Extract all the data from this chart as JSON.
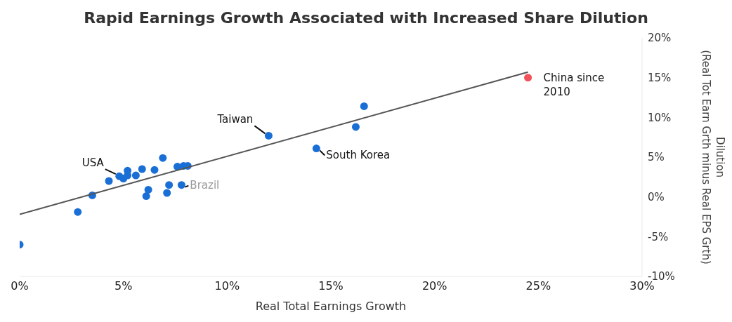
{
  "chart_data": {
    "type": "scatter",
    "title": "Rapid Earnings Growth Associated with Increased Share Dilution",
    "xlabel": "Real Total Earnings Growth",
    "ylabel": "Dilution\n(Real Tot Earn Grth minus Real EPS Grth)",
    "xlim": [
      0,
      30
    ],
    "xticks": [
      {
        "value": 0,
        "label": "0%"
      },
      {
        "value": 5,
        "label": "5%"
      },
      {
        "value": 10,
        "label": "10%"
      },
      {
        "value": 15,
        "label": "15%"
      },
      {
        "value": 20,
        "label": "20%"
      },
      {
        "value": 25,
        "label": "25%"
      },
      {
        "value": 30,
        "label": "30%"
      }
    ],
    "ylim": [
      -10,
      20
    ],
    "yticks": [
      {
        "value": -10,
        "label": "-10%"
      },
      {
        "value": -5,
        "label": "-5%"
      },
      {
        "value": 0,
        "label": "0%"
      },
      {
        "value": 5,
        "label": "5%"
      },
      {
        "value": 10,
        "label": "10%"
      },
      {
        "value": 15,
        "label": "15%"
      },
      {
        "value": 20,
        "label": "20%"
      }
    ],
    "grid": false,
    "marker": "circle",
    "series": [
      {
        "color": "#1a6fd6",
        "x": [
          0,
          2.8,
          3.5,
          4.3,
          4.8,
          5.0,
          5.2,
          5.2,
          5.6,
          5.9,
          6.5,
          6.9,
          6.1,
          6.2,
          7.1,
          7.2,
          7.6,
          7.9,
          8.1,
          7.8,
          12.0,
          14.3,
          16.2,
          16.6
        ],
        "values": [
          -6.0,
          -1.9,
          0.2,
          2.0,
          2.6,
          2.3,
          2.7,
          3.3,
          2.7,
          3.5,
          3.4,
          4.9,
          0.1,
          0.9,
          0.5,
          1.5,
          3.8,
          3.9,
          3.9,
          1.5,
          7.7,
          6.1,
          8.8,
          11.4
        ]
      },
      {
        "color": "#f2505a",
        "x": [
          24.5
        ],
        "values": [
          15.0
        ]
      },
      {
        "type": "line",
        "color": "#555555",
        "x": [
          0,
          24.5
        ],
        "values": [
          -2.2,
          15.7
        ],
        "marker": "none"
      }
    ],
    "annotations": [
      {
        "text": "USA",
        "x": 4.8,
        "y": 2.6
      },
      {
        "text": "Taiwan",
        "x": 12.0,
        "y": 7.7
      },
      {
        "text": "South Korea",
        "x": 14.3,
        "y": 6.1
      },
      {
        "text": "Brazil",
        "x": 7.8,
        "y": 1.5
      },
      {
        "text": "China since\n2010",
        "x": 24.5,
        "y": 15.0
      }
    ]
  }
}
